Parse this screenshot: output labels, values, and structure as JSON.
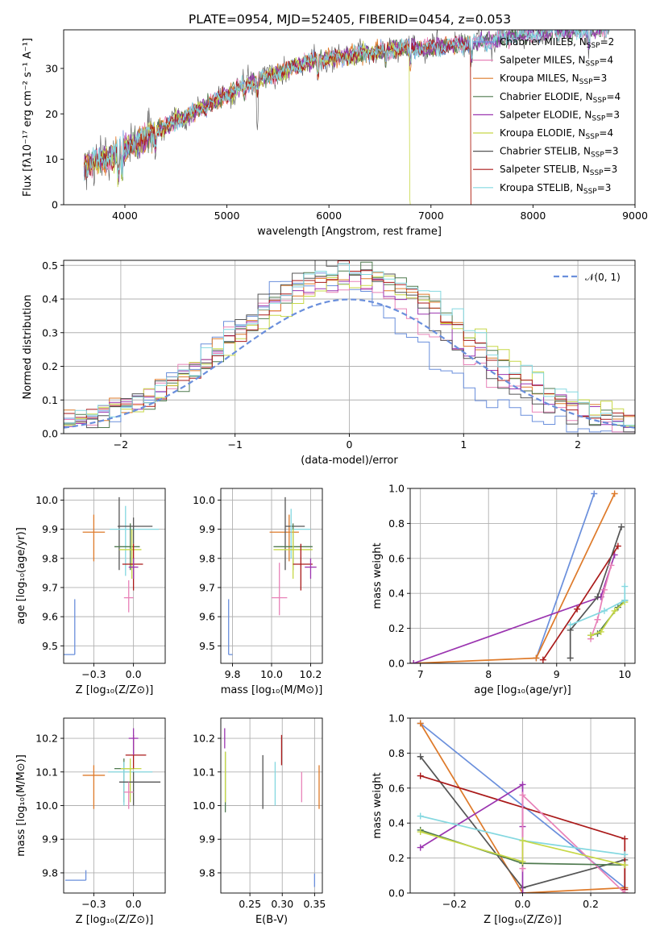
{
  "colors": {
    "CM": "#6a8fdc",
    "SM": "#e882b8",
    "KM": "#de7a2a",
    "CE": "#4f7a4f",
    "SE": "#9b35b0",
    "KE": "#c7d847",
    "CS": "#555555",
    "SS": "#aa1a1a",
    "KS": "#84d8e0",
    "normal": "#6a8fdc"
  },
  "models": [
    {
      "key": "CM",
      "name": "Chabrier MILES, N",
      "n": "2"
    },
    {
      "key": "SM",
      "name": "Salpeter MILES, N",
      "n": "4"
    },
    {
      "key": "KM",
      "name": "Kroupa MILES, N",
      "n": "3"
    },
    {
      "key": "CE",
      "name": "Chabrier ELODIE, N",
      "n": "4"
    },
    {
      "key": "SE",
      "name": "Salpeter ELODIE, N",
      "n": "3"
    },
    {
      "key": "KE",
      "name": "Kroupa ELODIE, N",
      "n": "4"
    },
    {
      "key": "CS",
      "name": "Chabrier STELIB, N",
      "n": "3"
    },
    {
      "key": "SS",
      "name": "Salpeter STELIB, N",
      "n": "3"
    },
    {
      "key": "KS",
      "name": "Kroupa STELIB, N",
      "n": "3"
    }
  ],
  "chart_data": [
    {
      "id": "spectrum",
      "type": "line",
      "title": "PLATE=0954, MJD=52405, FIBERID=0454, z=0.053",
      "xlabel": "wavelength [Angstrom, rest frame]",
      "ylabel": "Flux [fλ10⁻¹⁷ erg cm⁻² s⁻¹ A⁻¹]",
      "xlim": [
        3400,
        9000
      ],
      "ylim": [
        0,
        38.5
      ],
      "xticks": [
        4000,
        5000,
        6000,
        7000,
        8000,
        9000
      ],
      "yticks": [
        0,
        10,
        20,
        30
      ],
      "continuum": [
        [
          3600,
          8.5
        ],
        [
          3900,
          11
        ],
        [
          4100,
          13.5
        ],
        [
          4300,
          16
        ],
        [
          4600,
          19.5
        ],
        [
          4900,
          23
        ],
        [
          5200,
          26.5
        ],
        [
          5500,
          29
        ],
        [
          5800,
          31.5
        ],
        [
          6100,
          32.5
        ],
        [
          6400,
          33.5
        ],
        [
          6700,
          34.5
        ],
        [
          7000,
          34.5
        ],
        [
          7300,
          35.5
        ],
        [
          7600,
          36
        ],
        [
          7900,
          37.5
        ],
        [
          8200,
          38
        ],
        [
          8500,
          38.5
        ],
        [
          8750,
          39
        ]
      ],
      "features": [
        [
          3935,
          -5
        ],
        [
          3970,
          -4
        ],
        [
          4300,
          -2.5
        ],
        [
          5175,
          -1.5
        ],
        [
          5300,
          -9.5
        ],
        [
          5890,
          -3
        ],
        [
          6560,
          -2
        ],
        [
          6800,
          -35
        ],
        [
          7400,
          -38
        ],
        [
          8200,
          8
        ],
        [
          8550,
          -3
        ]
      ]
    },
    {
      "id": "residuals",
      "type": "line",
      "xlabel": "(data-model)/error",
      "ylabel": "Normed distribution",
      "xlim": [
        -2.5,
        2.5
      ],
      "ylim": [
        0,
        0.515
      ],
      "xticks": [
        -2,
        -1,
        0,
        1,
        2
      ],
      "yticks": [
        0.0,
        0.1,
        0.2,
        0.3,
        0.4,
        0.5
      ],
      "legend": "𝒩(0, 1)",
      "legend_loc": "upper right",
      "series": [
        {
          "name": "𝒩(0, 1)",
          "mu": 0,
          "sigma": 1
        }
      ],
      "hist_peak": [
        0.45,
        0.43,
        0.46,
        0.48,
        0.44,
        0.44,
        0.49,
        0.47,
        0.49
      ],
      "hist_width": [
        0.82,
        0.95,
        1.02,
        0.95,
        1.0,
        1.05,
        0.92,
        0.95,
        1.0
      ],
      "hist_shift": [
        -0.3,
        -0.15,
        0.0,
        0.05,
        -0.05,
        0.1,
        -0.1,
        0.0,
        0.05
      ]
    },
    {
      "id": "age_Z",
      "type": "scatter",
      "xlabel": "Z [log₁₀(Z/Z⊙)]",
      "ylabel": "age  [log₁₀(age/yr)]",
      "xlim": [
        -0.44,
        0.2
      ],
      "ylim": [
        9.44,
        10.04
      ],
      "xticks": [
        -0.25,
        0.0
      ],
      "yticks": [
        9.5,
        9.6,
        9.7,
        9.8,
        9.9,
        10.0
      ],
      "points": [
        {
          "s": "CM",
          "x": -0.37,
          "y": 9.47,
          "ex": [
            0.12,
            0.0
          ],
          "ey": [
            0.0,
            0.19
          ]
        },
        {
          "s": "KM",
          "x": -0.25,
          "y": 9.89,
          "ex": [
            0.07,
            0.07
          ],
          "ey": [
            0.1,
            0.06
          ]
        },
        {
          "s": "CS",
          "x": -0.09,
          "y": 9.91,
          "ex": [
            0.0,
            0.0
          ],
          "ey": [
            0.15,
            0.1
          ]
        },
        {
          "s": "KS",
          "x": -0.05,
          "y": 9.9,
          "ex": [
            0.1,
            0.21
          ],
          "ey": [
            0.16,
            0.08
          ]
        },
        {
          "s": "CE",
          "x": -0.02,
          "y": 9.84,
          "ex": [
            0.1,
            0.06
          ],
          "ey": [
            0.08,
            0.08
          ]
        },
        {
          "s": "KE",
          "x": -0.01,
          "y": 9.83,
          "ex": [
            0.08,
            0.06
          ],
          "ey": [
            0.1,
            0.07
          ]
        },
        {
          "s": "CS",
          "x": 0.0,
          "y": 9.91,
          "ex": [
            0.1,
            0.12
          ],
          "ey": [
            0.06,
            0.03
          ]
        },
        {
          "s": "SS",
          "x": 0.0,
          "y": 9.78,
          "ex": [
            0.07,
            0.06
          ],
          "ey": [
            0.09,
            0.07
          ]
        },
        {
          "s": "SE",
          "x": 0.0,
          "y": 9.77,
          "ex": [
            0.03,
            0.03
          ],
          "ey": [
            0.04,
            0.03
          ]
        },
        {
          "s": "SM",
          "x": -0.03,
          "y": 9.665,
          "ex": [
            0.03,
            0.03
          ],
          "ey": [
            0.05,
            0.06
          ]
        }
      ]
    },
    {
      "id": "age_mass",
      "type": "scatter",
      "xlabel": "mass [log₁₀(M/M⊙)]",
      "ylabel": "",
      "xlim": [
        9.74,
        10.26
      ],
      "ylim": [
        9.44,
        10.04
      ],
      "xticks": [
        9.8,
        10.0,
        10.2
      ],
      "yticks": [
        9.5,
        9.6,
        9.7,
        9.8,
        9.9,
        10.0
      ],
      "points": [
        {
          "s": "CM",
          "x": 9.78,
          "y": 9.47,
          "ex": [
            0.0,
            0.02
          ],
          "ey": [
            0.0,
            0.19
          ]
        },
        {
          "s": "KM",
          "x": 10.09,
          "y": 9.89,
          "ex": [
            0.1,
            0.05
          ],
          "ey": [
            0.1,
            0.06
          ]
        },
        {
          "s": "CS",
          "x": 10.07,
          "y": 9.91,
          "ex": [
            0.0,
            0.1
          ],
          "ey": [
            0.15,
            0.1
          ]
        },
        {
          "s": "KS",
          "x": 10.1,
          "y": 9.9,
          "ex": [
            0.0,
            0.1
          ],
          "ey": [
            0.1,
            0.07
          ]
        },
        {
          "s": "CE",
          "x": 10.11,
          "y": 9.84,
          "ex": [
            0.1,
            0.1
          ],
          "ey": [
            0.08,
            0.08
          ]
        },
        {
          "s": "KE",
          "x": 10.11,
          "y": 9.83,
          "ex": [
            0.1,
            0.1
          ],
          "ey": [
            0.1,
            0.07
          ]
        },
        {
          "s": "SS",
          "x": 10.15,
          "y": 9.78,
          "ex": [
            0.04,
            0.06
          ],
          "ey": [
            0.09,
            0.07
          ]
        },
        {
          "s": "SE",
          "x": 10.2,
          "y": 9.77,
          "ex": [
            0.03,
            0.03
          ],
          "ey": [
            0.04,
            0.03
          ]
        },
        {
          "s": "SM",
          "x": 10.04,
          "y": 9.665,
          "ex": [
            0.04,
            0.04
          ],
          "ey": [
            0.06,
            0.12
          ]
        }
      ]
    },
    {
      "id": "weight_age",
      "type": "line",
      "xlabel": "age  [log₁₀(age/yr)]",
      "ylabel": "mass weight",
      "xlim": [
        6.85,
        10.15
      ],
      "ylim": [
        0,
        1
      ],
      "xticks": [
        7,
        8,
        9,
        10
      ],
      "yticks": [
        0.0,
        0.2,
        0.4,
        0.6,
        0.8,
        1.0
      ],
      "series": [
        {
          "s": "CM",
          "x": [
            8.7,
            9.55
          ],
          "y": [
            0.03,
            0.97
          ]
        },
        {
          "s": "KM",
          "x": [
            6.9,
            8.7,
            9.85
          ],
          "y": [
            0.0,
            0.03,
            0.97
          ]
        },
        {
          "s": "SE",
          "x": [
            6.9,
            9.65,
            9.85
          ],
          "y": [
            0.0,
            0.38,
            0.62
          ]
        },
        {
          "s": "SS",
          "x": [
            8.8,
            9.3,
            9.9
          ],
          "y": [
            0.02,
            0.31,
            0.67
          ]
        },
        {
          "s": "CS",
          "x": [
            9.2,
            9.2,
            9.6,
            9.95
          ],
          "y": [
            0.03,
            0.19,
            0.38,
            0.78
          ]
        },
        {
          "s": "SM",
          "x": [
            9.5,
            9.6,
            9.7,
            9.8
          ],
          "y": [
            0.14,
            0.25,
            0.42,
            0.56
          ]
        },
        {
          "s": "CE",
          "x": [
            9.5,
            9.6,
            9.9,
            10.0
          ],
          "y": [
            0.16,
            0.17,
            0.32,
            0.36
          ]
        },
        {
          "s": "KE",
          "x": [
            9.5,
            9.65,
            9.85,
            10.0
          ],
          "y": [
            0.16,
            0.18,
            0.3,
            0.35
          ]
        },
        {
          "s": "KS",
          "x": [
            9.2,
            9.7,
            10.0,
            10.0
          ],
          "y": [
            0.22,
            0.3,
            0.36,
            0.44
          ]
        }
      ]
    },
    {
      "id": "mass_Z",
      "type": "scatter",
      "xlabel": "Z [log₁₀(Z/Z⊙)]",
      "ylabel": "mass [log₁₀(M/M⊙)]",
      "xlim": [
        -0.44,
        0.2
      ],
      "ylim": [
        9.74,
        10.26
      ],
      "xticks": [
        -0.25,
        0.0
      ],
      "yticks": [
        9.8,
        9.9,
        10.0,
        10.1,
        10.2
      ],
      "points": [
        {
          "s": "CM",
          "x": -0.3,
          "y": 9.778,
          "ex": [
            0.13,
            0.0
          ],
          "ey": [
            0.0,
            0.03
          ]
        },
        {
          "s": "KM",
          "x": -0.25,
          "y": 10.09,
          "ex": [
            0.07,
            0.07
          ],
          "ey": [
            0.1,
            0.03
          ]
        },
        {
          "s": "CE",
          "x": -0.06,
          "y": 10.11,
          "ex": [
            0.06,
            0.06
          ],
          "ey": [
            0.1,
            0.03
          ]
        },
        {
          "s": "KS",
          "x": -0.06,
          "y": 10.1,
          "ex": [
            0.1,
            0.18
          ],
          "ey": [
            0.1,
            0.03
          ]
        },
        {
          "s": "KE",
          "x": -0.02,
          "y": 10.11,
          "ex": [
            0.06,
            0.07
          ],
          "ey": [
            0.1,
            0.03
          ]
        },
        {
          "s": "CS",
          "x": 0.0,
          "y": 10.07,
          "ex": [
            0.09,
            0.17
          ],
          "ey": [
            0.07,
            0.03
          ]
        },
        {
          "s": "SM",
          "x": -0.03,
          "y": 10.04,
          "ex": [
            0.03,
            0.03
          ],
          "ey": [
            0.05,
            0.03
          ]
        },
        {
          "s": "SS",
          "x": 0.0,
          "y": 10.15,
          "ex": [
            0.05,
            0.08
          ],
          "ey": [
            0.04,
            0.06
          ]
        },
        {
          "s": "SE",
          "x": 0.0,
          "y": 10.2,
          "ex": [
            0.03,
            0.03
          ],
          "ey": [
            0.05,
            0.03
          ]
        }
      ]
    },
    {
      "id": "mass_ebv",
      "type": "scatter",
      "xlabel": "E(B-V)",
      "ylabel": "",
      "xlim": [
        0.205,
        0.362
      ],
      "ylim": [
        9.74,
        10.26
      ],
      "xticks": [
        0.25,
        0.3,
        0.35
      ],
      "yticks": [
        9.8,
        9.9,
        10.0,
        10.1,
        10.2
      ],
      "points": [
        {
          "s": "SE",
          "x": 0.211,
          "y": 10.2,
          "ex": [
            0,
            0
          ],
          "ey": [
            0.03,
            0.03
          ]
        },
        {
          "s": "CE",
          "x": 0.212,
          "y": 10.11,
          "ex": [
            0,
            0
          ],
          "ey": [
            0.13,
            0.05
          ]
        },
        {
          "s": "KE",
          "x": 0.212,
          "y": 10.09,
          "ex": [
            0,
            0
          ],
          "ey": [
            0.08,
            0.07
          ]
        },
        {
          "s": "CS",
          "x": 0.27,
          "y": 10.07,
          "ex": [
            0,
            0
          ],
          "ey": [
            0.08,
            0.08
          ]
        },
        {
          "s": "KS",
          "x": 0.289,
          "y": 10.07,
          "ex": [
            0,
            0
          ],
          "ey": [
            0.07,
            0.06
          ]
        },
        {
          "s": "SS",
          "x": 0.299,
          "y": 10.16,
          "ex": [
            0,
            0
          ],
          "ey": [
            0.04,
            0.05
          ]
        },
        {
          "s": "SM",
          "x": 0.33,
          "y": 10.05,
          "ex": [
            0,
            0
          ],
          "ey": [
            0.04,
            0.05
          ]
        },
        {
          "s": "CM",
          "x": 0.35,
          "y": 9.778,
          "ex": [
            0,
            0
          ],
          "ey": [
            0.02,
            0.02
          ]
        },
        {
          "s": "KM",
          "x": 0.357,
          "y": 10.09,
          "ex": [
            0,
            0
          ],
          "ey": [
            0.1,
            0.03
          ]
        }
      ]
    },
    {
      "id": "weight_Z",
      "type": "line",
      "xlabel": "Z [log₁₀(Z/Z⊙)]",
      "ylabel": "mass weight",
      "xlim": [
        -0.33,
        0.33
      ],
      "ylim": [
        0,
        1
      ],
      "xticks": [
        -0.2,
        0.0,
        0.2
      ],
      "yticks": [
        0.0,
        0.2,
        0.4,
        0.6,
        0.8,
        1.0
      ],
      "series": [
        {
          "s": "CM",
          "x": [
            -0.3,
            0.3
          ],
          "y": [
            0.97,
            0.03
          ]
        },
        {
          "s": "KM",
          "x": [
            -0.3,
            0.0,
            0.3
          ],
          "y": [
            0.97,
            0.0,
            0.03
          ]
        },
        {
          "s": "CS",
          "x": [
            -0.3,
            0.0,
            0.3,
            0.3
          ],
          "y": [
            0.78,
            0.03,
            0.19,
            0.0
          ]
        },
        {
          "s": "SS",
          "x": [
            -0.3,
            0.3,
            0.3
          ],
          "y": [
            0.67,
            0.31,
            0.02
          ]
        },
        {
          "s": "SE",
          "x": [
            -0.3,
            0.0,
            0.0,
            0.0
          ],
          "y": [
            0.26,
            0.62,
            0.38,
            0.0
          ]
        },
        {
          "s": "SM",
          "x": [
            0.0,
            0.0,
            0.3
          ],
          "y": [
            0.14,
            0.56,
            0.0
          ]
        },
        {
          "s": "KS",
          "x": [
            -0.3,
            0.0,
            0.3
          ],
          "y": [
            0.44,
            0.3,
            0.22
          ]
        },
        {
          "s": "CE",
          "x": [
            -0.3,
            0.0,
            0.3
          ],
          "y": [
            0.36,
            0.17,
            0.16
          ]
        },
        {
          "s": "KE",
          "x": [
            -0.3,
            0.0,
            0.0,
            0.3
          ],
          "y": [
            0.35,
            0.18,
            0.3,
            0.16
          ]
        }
      ]
    }
  ]
}
